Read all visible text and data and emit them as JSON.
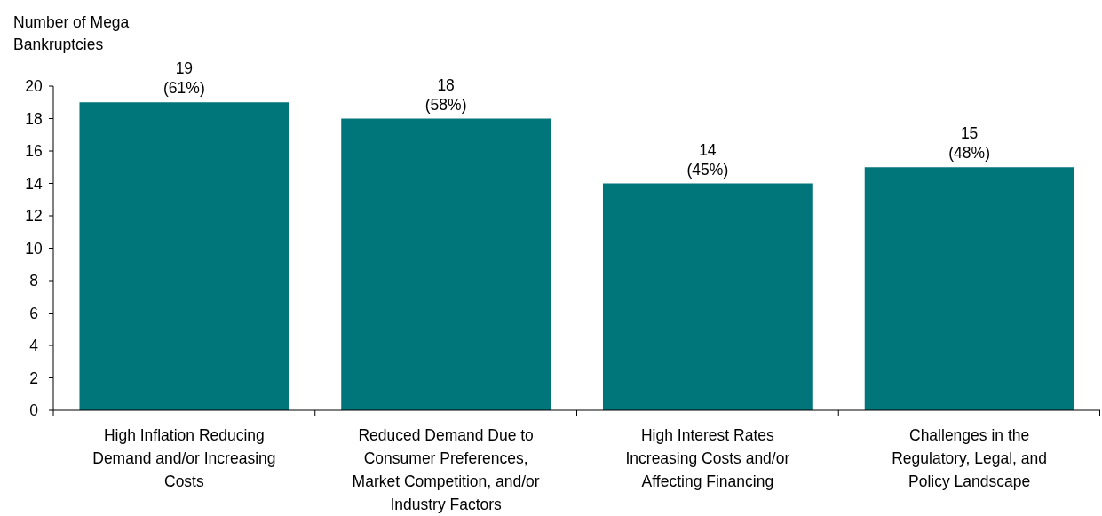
{
  "chart_data": {
    "type": "bar",
    "ylabel": "Number of Mega Bankruptcies",
    "categories": [
      "High Inflation Reducing Demand and/or Increasing Costs",
      "Reduced Demand Due to Consumer Preferences, Market Competition, and/or Industry Factors",
      "High Interest Rates Increasing Costs and/or Affecting Financing",
      "Challenges in the Regulatory, Legal, and Policy Landscape"
    ],
    "values": [
      19,
      18,
      14,
      15
    ],
    "value_labels": [
      "19 (61%)",
      "18 (58%)",
      "14 (45%)",
      "15 (48%)"
    ],
    "color": "#00767b",
    "ylim": [
      0,
      20
    ],
    "yticks": [
      0,
      2,
      4,
      6,
      8,
      10,
      12,
      14,
      16,
      18,
      20
    ],
    "grid": false
  }
}
